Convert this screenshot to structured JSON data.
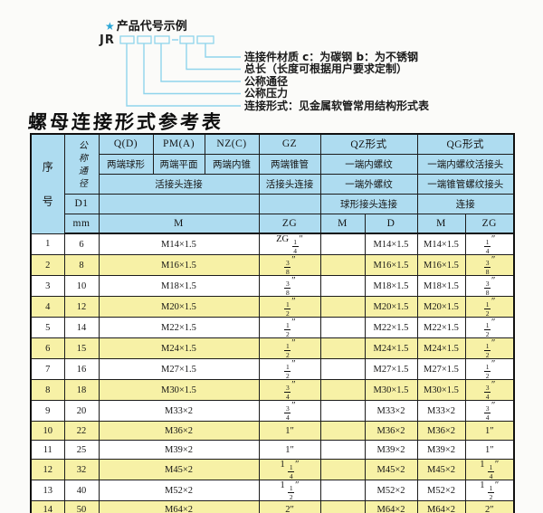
{
  "colors": {
    "accent": "#2ba6d6",
    "line": "#8fd4ec",
    "header_blue": "#aedcf0",
    "row_yellow": "#f7f1a6"
  },
  "diagram": {
    "star": "★",
    "heading": "产品代号示例",
    "prefix": "JR",
    "labels": [
      "连接件材质  c：为碳钢  b：为不锈钢",
      "总长（长度可根据用户要求定制）",
      "公称通径",
      "公称压力",
      "连接形式：见金属软管常用结构形式表"
    ]
  },
  "table": {
    "title": "螺母连接形式参考表",
    "header": {
      "serial": "序号",
      "nominal": "公称通径",
      "d1": "D1",
      "unit": "mm",
      "q": "Q(D)",
      "q_desc": "两端球形",
      "pm": "PM(A)",
      "pm_desc": "两端平面",
      "nz": "NZ(C)",
      "nz_desc": "两端内锥",
      "gz": "GZ",
      "gz_desc": "两端锥管",
      "qz": "QZ形式",
      "qz_r2": "一端内螺纹",
      "qz_r3": "一端外螺纹",
      "qz_r4": "球形接头连接",
      "qg": "QG形式",
      "qg_r2": "一端内螺纹活接头",
      "qg_r3": "一端锥管螺纹接头",
      "qg_r4": "连接",
      "union_left": "活接头连接",
      "union_gz": "活接头连接",
      "m": "M",
      "zg": "ZG",
      "sub": {
        "qz_m": "M",
        "qz_d": "D",
        "qg_m": "M",
        "qg_zg": "ZG"
      }
    },
    "rows": [
      [
        "1",
        "6",
        "M14×1.5",
        "ZG 1/4″",
        "",
        "M14×1.5",
        "M14×1.5",
        "1/4″"
      ],
      [
        "2",
        "8",
        "M16×1.5",
        "3/8″",
        "",
        "M16×1.5",
        "M16×1.5",
        "3/8″"
      ],
      [
        "3",
        "10",
        "M18×1.5",
        "3/8″",
        "",
        "M18×1.5",
        "M18×1.5",
        "3/8″"
      ],
      [
        "4",
        "12",
        "M20×1.5",
        "1/2″",
        "",
        "M20×1.5",
        "M20×1.5",
        "1/2″"
      ],
      [
        "5",
        "14",
        "M22×1.5",
        "1/2″",
        "",
        "M22×1.5",
        "M22×1.5",
        "1/2″"
      ],
      [
        "6",
        "15",
        "M24×1.5",
        "1/2″",
        "",
        "M24×1.5",
        "M24×1.5",
        "1/2″"
      ],
      [
        "7",
        "16",
        "M27×1.5",
        "1/2″",
        "",
        "M27×1.5",
        "M27×1.5",
        "1/2″"
      ],
      [
        "8",
        "18",
        "M30×1.5",
        "3/4″",
        "",
        "M30×1.5",
        "M30×1.5",
        "3/4″"
      ],
      [
        "9",
        "20",
        "M33×2",
        "3/4″",
        "",
        "M33×2",
        "M33×2",
        "3/4″"
      ],
      [
        "10",
        "22",
        "M36×2",
        "1″",
        "",
        "M36×2",
        "M36×2",
        "1″"
      ],
      [
        "11",
        "25",
        "M39×2",
        "1″",
        "",
        "M39×2",
        "M39×2",
        "1″"
      ],
      [
        "12",
        "32",
        "M45×2",
        "1 1/4″",
        "",
        "M45×2",
        "M45×2",
        "1 1/4″"
      ],
      [
        "13",
        "40",
        "M52×2",
        "1 1/2″",
        "",
        "M52×2",
        "M52×2",
        "1 1/2″"
      ],
      [
        "14",
        "50",
        "M64×2",
        "2″",
        "",
        "M64×2",
        "M64×2",
        "2″"
      ]
    ]
  }
}
